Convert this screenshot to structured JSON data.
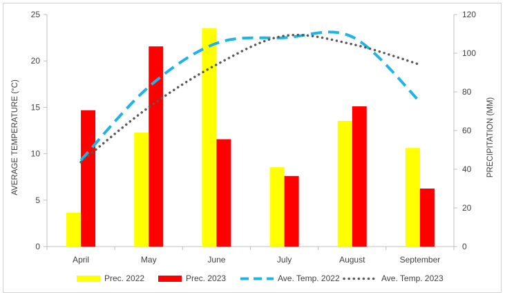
{
  "chart_data": {
    "type": "bar+line",
    "categories": [
      "April",
      "May",
      "June",
      "July",
      "August",
      "September"
    ],
    "y_left": {
      "label": "AVERAGE TEMPERATURE (°C)",
      "range": [
        0,
        25
      ],
      "ticks": [
        0,
        5,
        10,
        15,
        20,
        25
      ]
    },
    "y_right": {
      "label": "PRECIPITATION (MM)",
      "range": [
        0,
        120
      ],
      "ticks": [
        0,
        20,
        40,
        60,
        80,
        100,
        120
      ]
    },
    "bar_series": [
      {
        "name": "Prec. 2022",
        "axis": "right",
        "color": "#ffff00",
        "values": [
          17.5,
          59,
          113,
          41,
          65,
          51
        ]
      },
      {
        "name": "Prec. 2023",
        "axis": "right",
        "color": "#ff0000",
        "values": [
          70.5,
          103.5,
          55.5,
          36.5,
          72.5,
          30
        ]
      }
    ],
    "line_series": [
      {
        "name": "Ave. Temp. 2022",
        "axis": "left",
        "color": "#1eb4e6",
        "style": "dashed",
        "values": [
          9.3,
          17.2,
          21.9,
          22.5,
          22.6,
          15.6
        ]
      },
      {
        "name": "Ave. Temp. 2023",
        "axis": "left",
        "color": "#595959",
        "style": "dotted",
        "values": [
          9.1,
          15.0,
          19.6,
          22.7,
          21.8,
          19.6
        ]
      }
    ],
    "legend_position": "bottom",
    "gridlines": false
  }
}
